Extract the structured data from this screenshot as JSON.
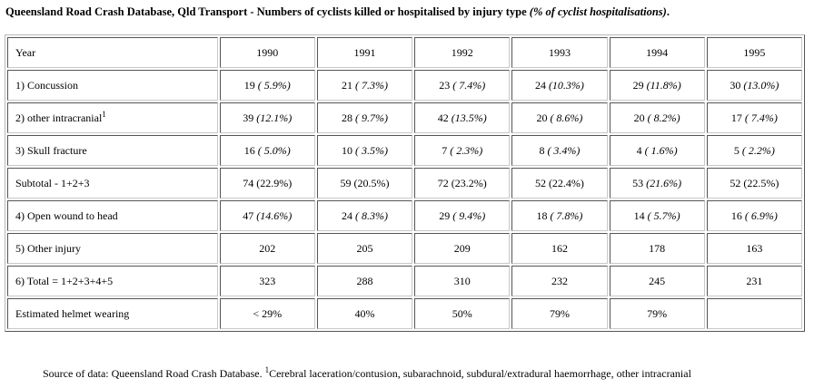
{
  "title": {
    "main": "Queensland Road Crash Database, Qld Transport - Numbers of cyclists killed or hospitalised by injury type ",
    "note": "(% of cyclist hospitalisations)",
    "end": "."
  },
  "table": {
    "header": {
      "label": "Year",
      "years": [
        "1990",
        "1991",
        "1992",
        "1993",
        "1994",
        "1995"
      ]
    },
    "rows": [
      {
        "label": "1) Concussion",
        "sup": "",
        "cells": [
          {
            "n": "19",
            "p": "( 5.9%)"
          },
          {
            "n": "21",
            "p": "( 7.3%)"
          },
          {
            "n": "23",
            "p": "( 7.4%)"
          },
          {
            "n": "24",
            "p": "(10.3%)"
          },
          {
            "n": "29",
            "p": "(11.8%)"
          },
          {
            "n": "30",
            "p": "(13.0%)"
          }
        ]
      },
      {
        "label": "2) other intracranial",
        "sup": "1",
        "cells": [
          {
            "n": "39",
            "p": "(12.1%)"
          },
          {
            "n": "28",
            "p": "( 9.7%)"
          },
          {
            "n": "42",
            "p": "(13.5%)"
          },
          {
            "n": "20",
            "p": "( 8.6%)"
          },
          {
            "n": "20",
            "p": "( 8.2%)"
          },
          {
            "n": "17",
            "p": "( 7.4%)"
          }
        ]
      },
      {
        "label": "3) Skull fracture",
        "sup": "",
        "cells": [
          {
            "n": "16",
            "p": "( 5.0%)"
          },
          {
            "n": "10",
            "p": "( 3.5%)"
          },
          {
            "n": "7",
            "p": "( 2.3%)"
          },
          {
            "n": "8",
            "p": "( 3.4%)"
          },
          {
            "n": "4",
            "p": "( 1.6%)"
          },
          {
            "n": "5",
            "p": "( 2.2%)"
          }
        ]
      },
      {
        "label": "Subtotal - 1+2+3",
        "sup": "",
        "cells": [
          {
            "n": "74 (22.9%)",
            "p": ""
          },
          {
            "n": "59 (20.5%)",
            "p": ""
          },
          {
            "n": "72 (23.2%)",
            "p": ""
          },
          {
            "n": "52 (22.4%)",
            "p": ""
          },
          {
            "n": "53",
            "p": "(21.6%)"
          },
          {
            "n": "52 (22.5%)",
            "p": ""
          }
        ]
      },
      {
        "label": "4) Open wound to head",
        "sup": "",
        "cells": [
          {
            "n": "47",
            "p": "(14.6%)"
          },
          {
            "n": "24",
            "p": "( 8.3%)"
          },
          {
            "n": "29",
            "p": "( 9.4%)"
          },
          {
            "n": "18",
            "p": "( 7.8%)"
          },
          {
            "n": "14",
            "p": "( 5.7%)"
          },
          {
            "n": "16",
            "p": "( 6.9%)"
          }
        ]
      },
      {
        "label": "5) Other injury",
        "sup": "",
        "cells": [
          {
            "n": "202",
            "p": ""
          },
          {
            "n": "205",
            "p": ""
          },
          {
            "n": "209",
            "p": ""
          },
          {
            "n": "162",
            "p": ""
          },
          {
            "n": "178",
            "p": ""
          },
          {
            "n": "163",
            "p": ""
          }
        ]
      },
      {
        "label": "6) Total = 1+2+3+4+5",
        "sup": "",
        "cells": [
          {
            "n": "323",
            "p": ""
          },
          {
            "n": "288",
            "p": ""
          },
          {
            "n": "310",
            "p": ""
          },
          {
            "n": "232",
            "p": ""
          },
          {
            "n": "245",
            "p": ""
          },
          {
            "n": "231",
            "p": ""
          }
        ]
      },
      {
        "label": "Estimated helmet wearing",
        "sup": "",
        "cells": [
          {
            "n": "< 29%",
            "p": ""
          },
          {
            "n": "40%",
            "p": ""
          },
          {
            "n": "50%",
            "p": ""
          },
          {
            "n": "79%",
            "p": ""
          },
          {
            "n": "79%",
            "p": ""
          },
          {
            "n": "",
            "p": ""
          }
        ]
      }
    ]
  },
  "footnote": {
    "prefix": "Source of data: Queensland Road Crash Database. ",
    "sup": "1",
    "text": "Cerebral laceration/contusion, subarachnoid, subdural/extradural haemorrhage, other intracranial"
  }
}
